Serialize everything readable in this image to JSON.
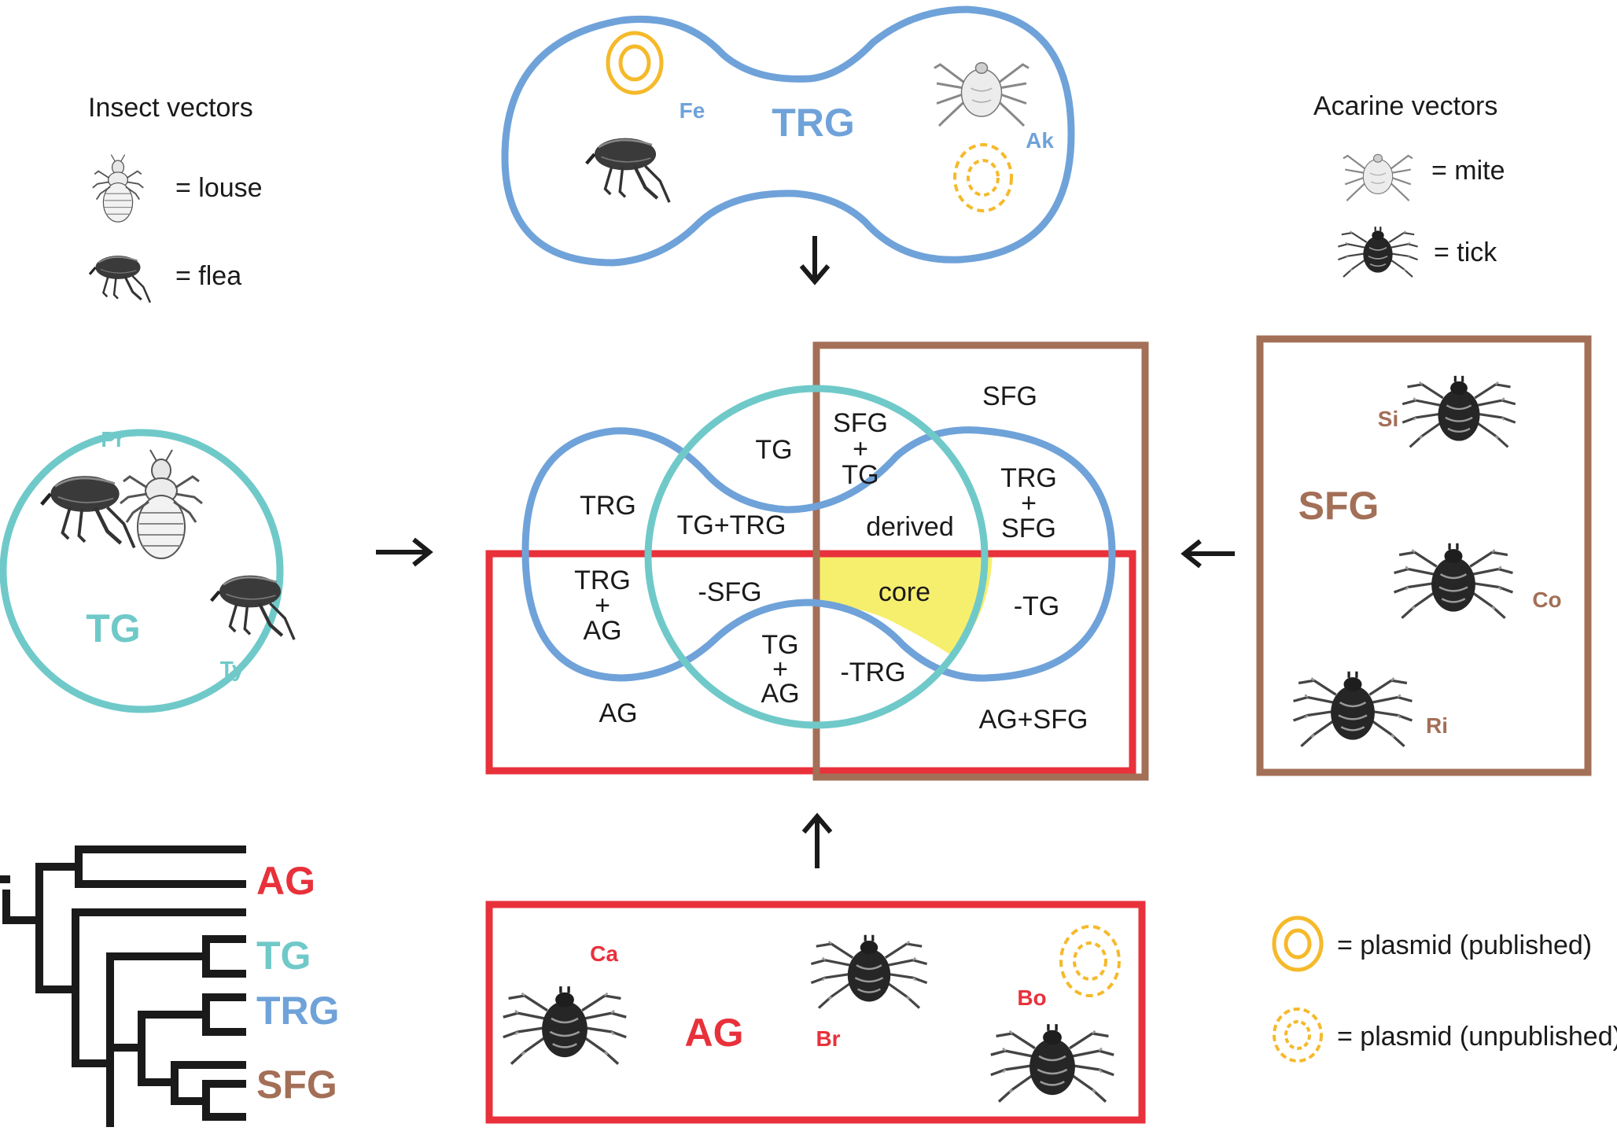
{
  "colors": {
    "trg": "#6fa2d9",
    "tg": "#70c9c9",
    "sfg": "#a36f57",
    "ag": "#e8313b",
    "plasmid": "#f5b92a",
    "core_fill": "#f6ef6e",
    "black": "#1a1a1a"
  },
  "legend_insect": {
    "title": "Insect vectors",
    "louse": "= louse",
    "flea": "= flea"
  },
  "legend_acarine": {
    "title": "Acarine vectors",
    "mite": "= mite",
    "tick": "= tick"
  },
  "legend_plasmid": {
    "published": "= plasmid (published)",
    "unpublished": "= plasmid (unpublished)"
  },
  "groups": {
    "trg": {
      "label": "TRG",
      "members": [
        "Fe",
        "Ak"
      ]
    },
    "tg": {
      "label": "TG",
      "members": [
        "Pr",
        "Ty"
      ]
    },
    "sfg": {
      "label": "SFG",
      "members": [
        "Si",
        "Co",
        "Ri"
      ]
    },
    "ag": {
      "label": "AG",
      "members": [
        "Ca",
        "Br",
        "Bo"
      ]
    }
  },
  "venn_regions": {
    "sfg": "SFG",
    "tg": "TG",
    "sfg_tg": [
      "SFG",
      "+",
      "TG"
    ],
    "trg": "TRG",
    "tg_trg": "TG+TRG",
    "derived": "derived",
    "trg_sfg": [
      "TRG",
      "+",
      "SFG"
    ],
    "trg_ag": [
      "TRG",
      "+",
      "AG"
    ],
    "minus_sfg": "-SFG",
    "core": "core",
    "minus_tg": "-TG",
    "tg_ag": [
      "TG",
      "+",
      "AG"
    ],
    "minus_trg": "-TRG",
    "ag": "AG",
    "ag_sfg": "AG+SFG"
  },
  "tree_labels": [
    "AG",
    "TG",
    "TRG",
    "SFG"
  ],
  "icons": [
    "louse-icon",
    "flea-icon",
    "mite-icon",
    "tick-icon",
    "plasmid-published-icon",
    "plasmid-unpublished-icon",
    "arrow-icon"
  ]
}
